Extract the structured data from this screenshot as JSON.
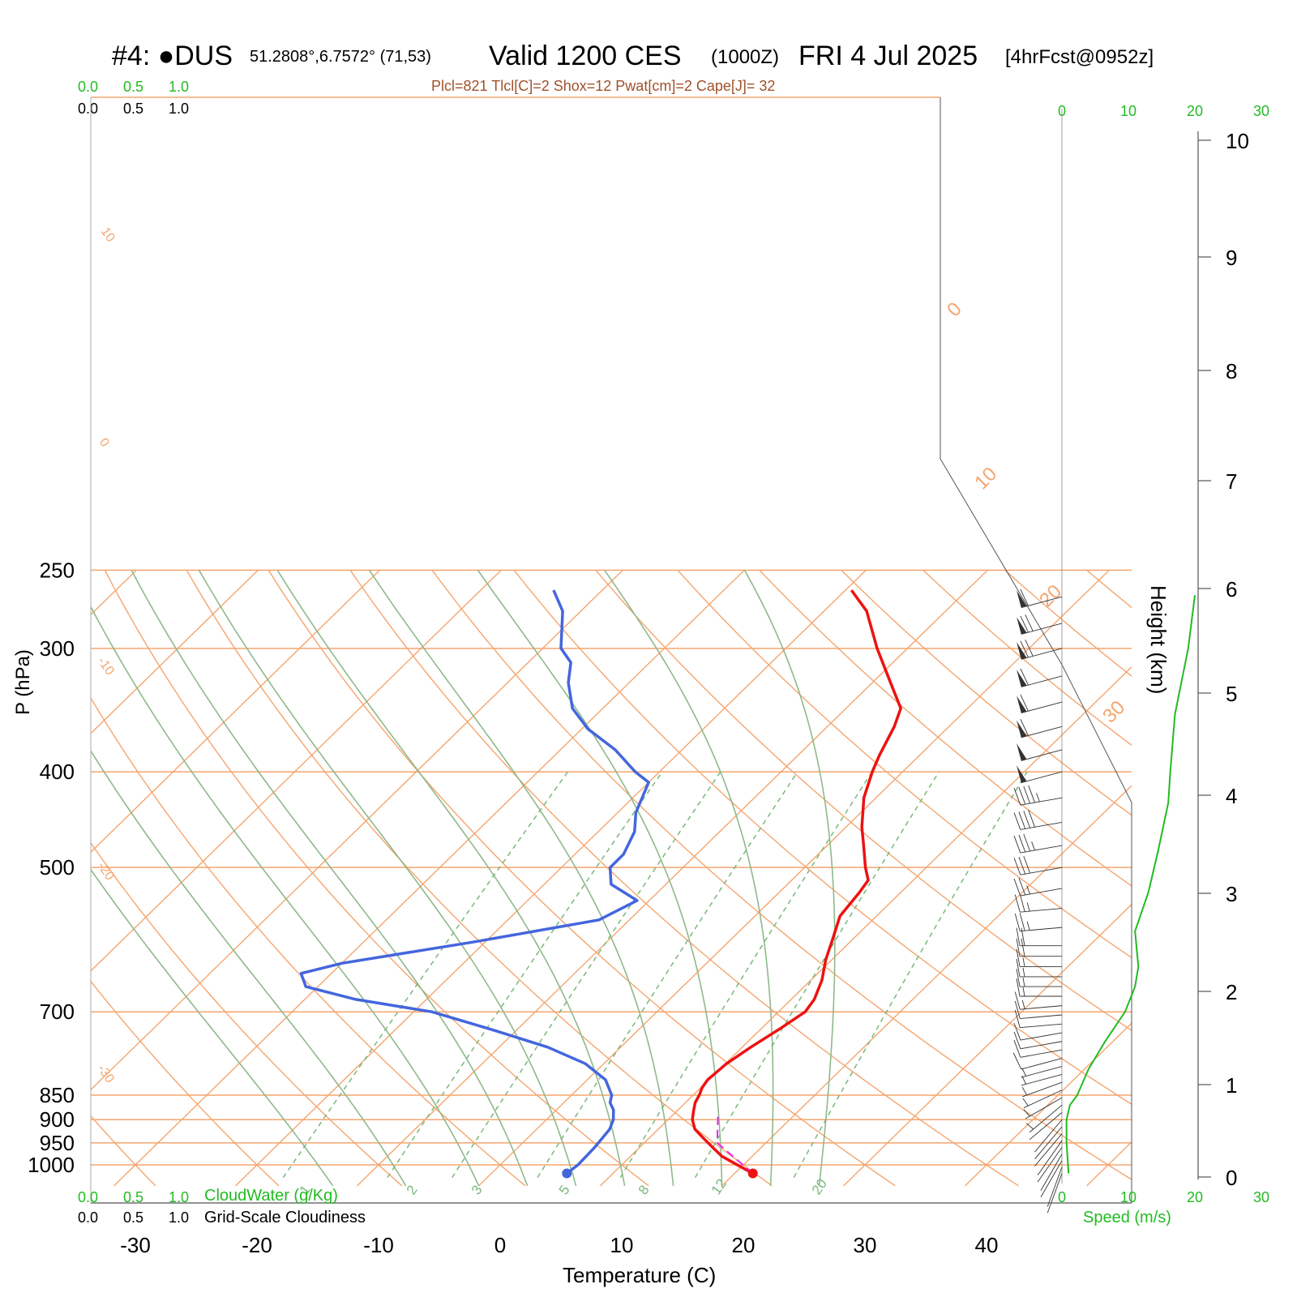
{
  "header": {
    "station": "#4: ●DUS",
    "coords": "51.2808°,6.7572° (71,53)",
    "valid": "Valid 1200 CES",
    "utc": "(1000Z)",
    "date": "FRI 4 Jul 2025",
    "forecast": "[4hrFcst@0952z]",
    "indices": "Plcl=821 Tlcl[C]=2 Shox=12 Pwat[cm]=2 Cape[J]= 32"
  },
  "colors": {
    "isotherm_isobar": "#f5a56e",
    "dry_adiabat": "#f5a56e",
    "moist_adiabat": "#8fb98a",
    "mixing_ratio": "#7ab87a",
    "temperature": "#ee1111",
    "dewpoint": "#4466dd",
    "parcel": "#ee22ee",
    "wind_speed": "#22bb22",
    "indices_text": "#a0522d"
  },
  "scales": {
    "top_green": [
      "0.0",
      "0.5",
      "1.0"
    ],
    "top_black": [
      "0.0",
      "0.5",
      "1.0"
    ],
    "bottom_green": [
      "0.0",
      "0.5",
      "1.0"
    ],
    "bottom_black": [
      "0.0",
      "0.5",
      "1.0"
    ],
    "cloudwater_label": "CloudWater (g/Kg)",
    "cloudiness_label": "Grid-Scale Cloudiness",
    "speed_ticks": [
      "0",
      "10",
      "20",
      "30"
    ],
    "speed_label": "Speed (m/s)"
  },
  "chart_data": {
    "type": "line",
    "xlabel": "Temperature (C)",
    "ylabel": "P (hPa)",
    "y2label": "Height (km)",
    "ylim": [
      1050,
      250
    ],
    "y_scale": "log",
    "x_ticks": [
      -30,
      -20,
      -10,
      0,
      10,
      20,
      30,
      40
    ],
    "pressure_ticks": [
      250,
      300,
      400,
      500,
      700,
      850,
      900,
      950,
      1000
    ],
    "height_ticks": [
      0,
      1,
      2,
      3,
      4,
      5,
      6,
      7,
      8,
      9,
      10
    ],
    "isotherm_labels": [
      "10",
      "0",
      "-10",
      "-20",
      "-30",
      "0",
      "10",
      "20",
      "30"
    ],
    "mixing_ratio_labels": [
      "1",
      "2",
      "3",
      "5",
      "8",
      "12",
      "20"
    ],
    "series": [
      {
        "name": "Temperature",
        "points": [
          [
            21.5,
            1020
          ],
          [
            20.5,
            1010
          ],
          [
            19,
            995
          ],
          [
            17.5,
            980
          ],
          [
            16,
            960
          ],
          [
            14.5,
            940
          ],
          [
            13,
            920
          ],
          [
            12,
            900
          ],
          [
            11.3,
            880
          ],
          [
            10.8,
            865
          ],
          [
            10.5,
            850
          ],
          [
            10.1,
            835
          ],
          [
            9.9,
            820
          ],
          [
            10.1,
            790
          ],
          [
            10.7,
            760
          ],
          [
            11.5,
            730
          ],
          [
            12.2,
            700
          ],
          [
            11.9,
            680
          ],
          [
            10.9,
            650
          ],
          [
            9.5,
            620
          ],
          [
            8.3,
            590
          ],
          [
            7,
            560
          ],
          [
            6.6,
            530
          ],
          [
            6.3,
            515
          ],
          [
            5,
            500
          ],
          [
            3,
            475
          ],
          [
            1.3,
            455
          ],
          [
            -1,
            425
          ],
          [
            -2.5,
            400
          ],
          [
            -3.3,
            385
          ],
          [
            -4.5,
            360
          ],
          [
            -5.5,
            345
          ],
          [
            -8.5,
            325
          ],
          [
            -12.5,
            300
          ],
          [
            -16.5,
            275
          ],
          [
            -19.5,
            262
          ]
        ]
      },
      {
        "name": "Dewpoint",
        "points": [
          [
            6.2,
            1020
          ],
          [
            6.4,
            1000
          ],
          [
            6.3,
            960
          ],
          [
            6,
            920
          ],
          [
            5.5,
            900
          ],
          [
            4.7,
            880
          ],
          [
            3.8,
            865
          ],
          [
            3.3,
            850
          ],
          [
            1.5,
            820
          ],
          [
            -1.5,
            790
          ],
          [
            -6,
            760
          ],
          [
            -12,
            730
          ],
          [
            -18.5,
            700
          ],
          [
            -25.8,
            680
          ],
          [
            -31,
            660
          ],
          [
            -32.5,
            640
          ],
          [
            -30,
            625
          ],
          [
            -21,
            595
          ],
          [
            -12.5,
            565
          ],
          [
            -11,
            540
          ],
          [
            -14.5,
            520
          ],
          [
            -16,
            500
          ],
          [
            -16,
            485
          ],
          [
            -17,
            460
          ],
          [
            -18.5,
            440
          ],
          [
            -20,
            410
          ],
          [
            -22,
            400
          ],
          [
            -25.5,
            380
          ],
          [
            -29.5,
            362
          ],
          [
            -32.5,
            345
          ],
          [
            -35,
            325
          ],
          [
            -36.5,
            310
          ],
          [
            -38.5,
            300
          ],
          [
            -41.5,
            275
          ],
          [
            -44,
            262
          ]
        ]
      },
      {
        "name": "Parcel",
        "points": [
          [
            21.5,
            1020
          ],
          [
            16,
            950
          ],
          [
            13.5,
            885
          ]
        ]
      }
    ],
    "wind_speed": {
      "points": [
        [
          1,
          1020
        ],
        [
          0.7,
          950
        ],
        [
          0.7,
          900
        ],
        [
          1.2,
          870
        ],
        [
          2.3,
          850
        ],
        [
          4,
          800
        ],
        [
          6.5,
          750
        ],
        [
          9.5,
          700
        ],
        [
          11,
          660
        ],
        [
          11.5,
          630
        ],
        [
          11,
          580
        ],
        [
          13,
          530
        ],
        [
          14.5,
          480
        ],
        [
          16,
          430
        ],
        [
          16.3,
          400
        ],
        [
          17,
          350
        ],
        [
          19,
          300
        ],
        [
          20,
          265
        ]
      ]
    },
    "winds": {
      "pressures": [
        1020,
        1005,
        990,
        975,
        960,
        945,
        930,
        915,
        900,
        885,
        870,
        855,
        840,
        825,
        810,
        795,
        780,
        765,
        750,
        735,
        720,
        705,
        690,
        675,
        660,
        645,
        630,
        615,
        600,
        575,
        550,
        525,
        500,
        475,
        450,
        425,
        400,
        380,
        360,
        340,
        320,
        300,
        283,
        266
      ],
      "speeds": [
        1,
        1,
        1,
        1,
        1,
        1,
        1,
        1,
        1,
        1,
        2,
        2,
        2,
        2,
        3,
        3,
        4,
        4,
        4,
        5,
        5,
        5,
        7,
        7,
        7,
        7,
        7,
        10,
        10,
        12,
        12,
        13,
        15,
        17,
        20,
        22,
        25,
        25,
        30,
        30,
        30,
        35,
        35,
        30
      ],
      "directions": [
        200,
        200,
        210,
        210,
        215,
        215,
        220,
        220,
        220,
        230,
        230,
        240,
        245,
        250,
        255,
        255,
        255,
        260,
        260,
        260,
        265,
        265,
        265,
        270,
        270,
        270,
        270,
        270,
        270,
        265,
        265,
        260,
        260,
        260,
        260,
        260,
        255,
        255,
        255,
        255,
        255,
        255,
        255,
        255
      ]
    }
  }
}
